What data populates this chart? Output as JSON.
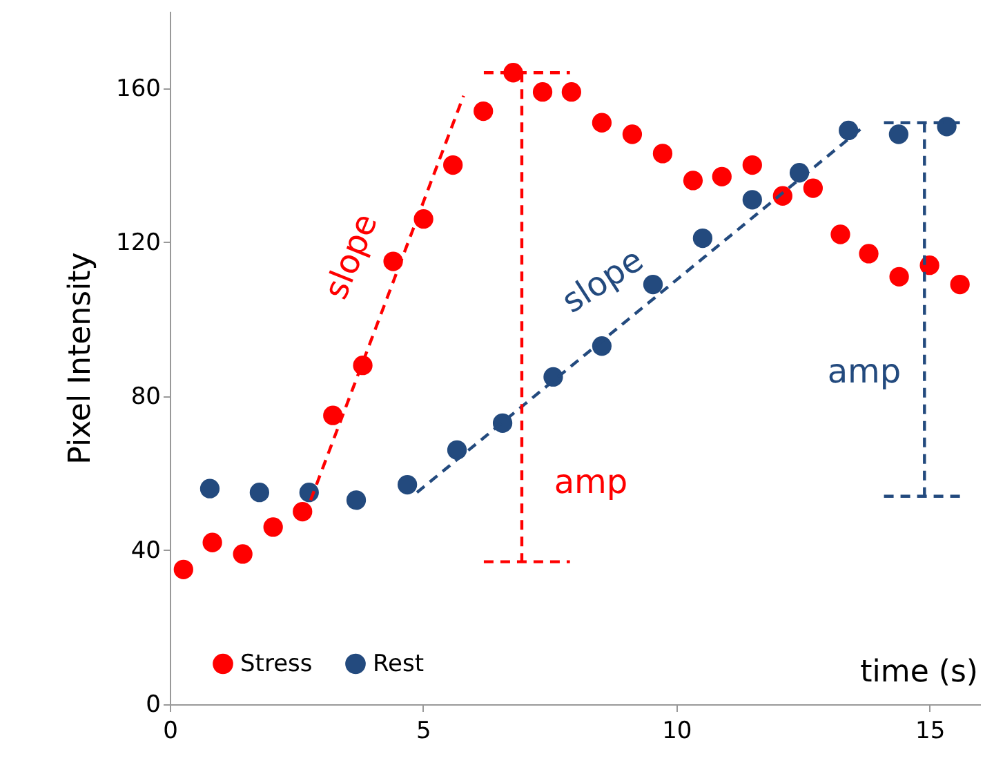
{
  "chart_data": {
    "type": "scatter",
    "xlabel": "time (s)",
    "ylabel": "Pixel Intensity",
    "xlim": [
      0,
      16
    ],
    "ylim": [
      0,
      180
    ],
    "xticks": [
      0,
      5,
      10,
      15
    ],
    "yticks": [
      0,
      40,
      80,
      120,
      160
    ],
    "grid": false,
    "legend": "bottom left",
    "series": [
      {
        "name": "Stress",
        "color": "#ff0000",
        "marker": "circle",
        "x": [
          0.27,
          0.84,
          1.44,
          2.04,
          2.62,
          3.22,
          3.81,
          4.41,
          5.01,
          5.59,
          6.19,
          6.78,
          7.36,
          7.93,
          8.53,
          9.13,
          9.73,
          10.33,
          10.9,
          11.5,
          12.1,
          12.7,
          13.24,
          13.8,
          14.4,
          15.0,
          15.6
        ],
        "values": [
          35,
          42,
          39,
          46,
          50,
          75,
          88,
          115,
          126,
          140,
          154,
          164,
          159,
          159,
          151,
          148,
          143,
          136,
          137,
          140,
          132,
          134,
          122,
          117,
          111,
          114,
          109
        ]
      },
      {
        "name": "Rest",
        "color": "#234a7e",
        "marker": "circle",
        "x": [
          0.79,
          1.77,
          2.75,
          3.68,
          4.69,
          5.67,
          6.57,
          7.57,
          8.53,
          9.54,
          10.52,
          11.5,
          12.43,
          13.4,
          14.39,
          15.34
        ],
        "values": [
          56,
          55,
          55,
          53,
          57,
          66,
          73,
          85,
          93,
          109,
          121,
          131,
          138,
          149,
          148,
          150
        ]
      },
      {
        "color": "#ff0000",
        "type": "line",
        "line_style": "dashed",
        "x": [
          2.78,
          5.8
        ],
        "values": [
          53,
          158
        ]
      },
      {
        "color": "#234a7e",
        "type": "line",
        "line_style": "dashed",
        "x": [
          4.88,
          13.7
        ],
        "values": [
          55,
          150
        ]
      },
      {
        "color": "#ff0000",
        "type": "line",
        "line_style": "dashed",
        "x": [
          6.95,
          6.95
        ],
        "values": [
          164,
          37
        ]
      },
      {
        "color": "#ff0000",
        "type": "line",
        "line_style": "dashed",
        "x": [
          6.2,
          7.9
        ],
        "values": [
          164,
          164
        ]
      },
      {
        "color": "#ff0000",
        "type": "line",
        "line_style": "dashed",
        "x": [
          6.2,
          7.9
        ],
        "values": [
          37,
          37
        ]
      },
      {
        "color": "#234a7e",
        "type": "line",
        "line_style": "dashed",
        "x": [
          14.9,
          14.9
        ],
        "values": [
          151,
          54
        ]
      },
      {
        "color": "#234a7e",
        "type": "line",
        "line_style": "dashed",
        "x": [
          14.1,
          15.7
        ],
        "values": [
          151,
          151
        ]
      },
      {
        "color": "#234a7e",
        "type": "line",
        "line_style": "dashed",
        "x": [
          14.1,
          15.7
        ],
        "values": [
          54,
          54
        ]
      }
    ],
    "annotations": [
      "slope",
      "slope",
      "amp",
      "amp"
    ]
  }
}
